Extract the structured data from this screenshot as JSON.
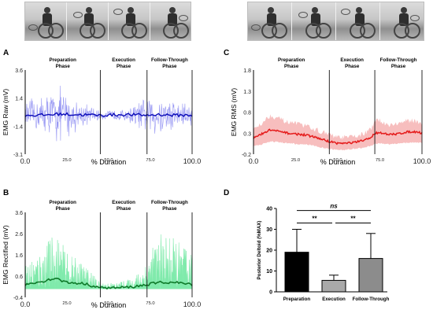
{
  "panels": {
    "A": {
      "letter": "A",
      "ylabel": "EMG Raw (mV)",
      "xlabel": "% Duration"
    },
    "B": {
      "letter": "B",
      "ylabel": "EMG Rectified (mV)",
      "xlabel": "% Duration"
    },
    "C": {
      "letter": "C",
      "ylabel": "EMG RMS (mV)",
      "xlabel": "% Duration"
    },
    "D": {
      "letter": "D",
      "ylabel": "Posterior Deltoid (%MAX)"
    }
  },
  "phases": {
    "preparation": [
      "Preparation",
      "Phase"
    ],
    "execution": [
      "Execution",
      "Phase"
    ],
    "follow_through": [
      "Follow-Through",
      "Phase"
    ]
  },
  "colors": {
    "raw_band": "#8c8cf2",
    "raw_mean": "#0a0ab8",
    "rect_band": "#55e38f",
    "rect_mean": "#0f7a2a",
    "rms_band": "#f6b3b3",
    "rms_mean": "#e51c1c",
    "bar_preparation": "#000000",
    "bar_execution": "#a9a9a9",
    "bar_follow_through": "#8c8c8c"
  },
  "chart_data": [
    {
      "type": "line",
      "panel": "A",
      "ylabel": "EMG Raw (mV)",
      "xlabel": "% Duration",
      "x_ticks": [
        "0.0",
        "25.0",
        "50.0",
        "75.0",
        "100.0"
      ],
      "y_ticks": [
        "3.6",
        "1.4",
        "-1.4",
        "-3.1"
      ],
      "xlim": [
        0,
        100
      ],
      "ylim": [
        -3.1,
        3.6
      ],
      "phase_boundaries": [
        45,
        73
      ],
      "series": [
        {
          "name": "",
          "x": [
            0,
            10,
            20,
            30,
            45,
            60,
            73,
            80,
            90,
            100
          ],
          "values": [
            0.0,
            0.0,
            0.1,
            0.05,
            0.0,
            0.05,
            0.0,
            0.05,
            0.0,
            0.0
          ]
        },
        {
          "name": "",
          "x": [
            0,
            10,
            20,
            30,
            45,
            60,
            73,
            80,
            90,
            100
          ],
          "values": [
            1.2,
            1.8,
            2.6,
            1.5,
            0.4,
            0.5,
            1.6,
            1.9,
            1.4,
            1.2
          ]
        }
      ]
    },
    {
      "type": "line",
      "panel": "B",
      "ylabel": "EMG Rectified (mV)",
      "xlabel": "% Duration",
      "x_ticks": [
        "0.0",
        "25.0",
        "50.0",
        "75.0",
        "100.0"
      ],
      "y_ticks": [
        "3.6",
        "2.6",
        "1.6",
        "0.6",
        "-0.4"
      ],
      "xlim": [
        0,
        100
      ],
      "ylim": [
        -0.4,
        3.6
      ],
      "phase_boundaries": [
        45,
        73
      ],
      "series": [
        {
          "name": "",
          "x": [
            0,
            10,
            18,
            25,
            35,
            45,
            55,
            65,
            73,
            80,
            90,
            100
          ],
          "values": [
            0.2,
            0.35,
            0.5,
            0.3,
            0.25,
            0.05,
            0.05,
            0.1,
            0.2,
            0.3,
            0.3,
            0.2
          ]
        },
        {
          "name": "",
          "x": [
            0,
            10,
            18,
            25,
            35,
            45,
            55,
            65,
            73,
            80,
            90,
            100
          ],
          "values": [
            1.2,
            1.9,
            2.8,
            1.7,
            1.2,
            0.3,
            0.3,
            0.5,
            1.4,
            2.6,
            2.4,
            1.6
          ]
        }
      ]
    },
    {
      "type": "area",
      "panel": "C",
      "ylabel": "EMG RMS (mV)",
      "xlabel": "% Duration",
      "x_ticks": [
        "0.0",
        "25.0",
        "50.0",
        "75.0",
        "100.0"
      ],
      "y_ticks": [
        "1.8",
        "1.3",
        "0.8",
        "0.3",
        "-0.2"
      ],
      "xlim": [
        0,
        100
      ],
      "ylim": [
        -0.2,
        1.8
      ],
      "phase_boundaries": [
        45,
        72
      ],
      "series": [
        {
          "name": "",
          "x": [
            0,
            5,
            10,
            15,
            20,
            25,
            30,
            35,
            40,
            45,
            50,
            55,
            60,
            65,
            70,
            72,
            75,
            80,
            85,
            90,
            95,
            100
          ],
          "values": [
            0.18,
            0.28,
            0.38,
            0.34,
            0.3,
            0.28,
            0.26,
            0.22,
            0.16,
            0.1,
            0.06,
            0.06,
            0.08,
            0.12,
            0.2,
            0.3,
            0.32,
            0.26,
            0.28,
            0.32,
            0.34,
            0.3
          ]
        },
        {
          "name": "",
          "x": [
            0,
            5,
            10,
            15,
            20,
            25,
            30,
            35,
            40,
            45,
            50,
            55,
            60,
            65,
            70,
            72,
            75,
            80,
            85,
            90,
            95,
            100
          ],
          "values": [
            0.0,
            0.05,
            0.12,
            0.1,
            0.08,
            0.06,
            0.05,
            0.03,
            -0.02,
            -0.06,
            -0.08,
            -0.08,
            -0.06,
            -0.03,
            0.02,
            0.06,
            0.08,
            0.05,
            0.06,
            0.08,
            0.1,
            0.08
          ]
        },
        {
          "name": "",
          "x": [
            0,
            5,
            10,
            15,
            20,
            25,
            30,
            35,
            40,
            45,
            50,
            55,
            60,
            65,
            70,
            72,
            75,
            80,
            85,
            90,
            95,
            100
          ],
          "values": [
            0.4,
            0.55,
            0.72,
            0.65,
            0.56,
            0.52,
            0.48,
            0.42,
            0.34,
            0.26,
            0.2,
            0.2,
            0.22,
            0.28,
            0.4,
            0.58,
            0.6,
            0.5,
            0.52,
            0.58,
            0.6,
            0.54
          ]
        }
      ]
    },
    {
      "type": "bar",
      "panel": "D",
      "ylabel": "Posterior Deltoid (%MAX)",
      "categories": [
        "Preparation",
        "Execution",
        "Follow-Through"
      ],
      "values": [
        19,
        5.5,
        16
      ],
      "errors": [
        11,
        2.5,
        12
      ],
      "y_ticks": [
        "0",
        "10",
        "20",
        "30",
        "40"
      ],
      "ylim": [
        0,
        40
      ],
      "significance": [
        {
          "from": 0,
          "to": 1,
          "label": "**"
        },
        {
          "from": 1,
          "to": 2,
          "label": "**"
        },
        {
          "from": 0,
          "to": 2,
          "label": "ns"
        }
      ]
    }
  ]
}
